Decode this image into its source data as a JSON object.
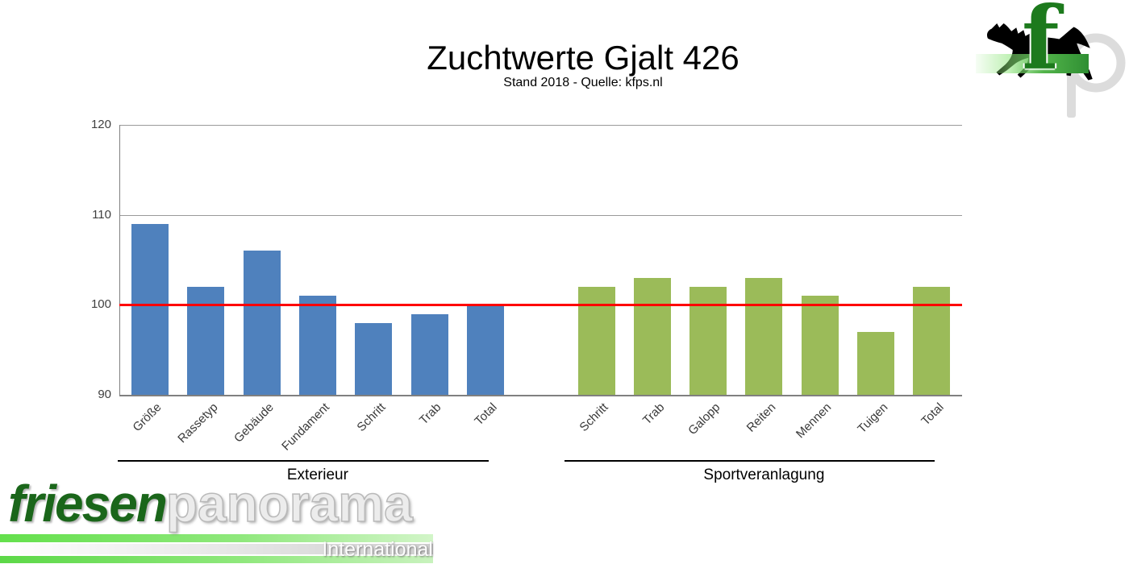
{
  "page": {
    "title": "Zuchtwerte Gjalt 426",
    "subtitle": "Stand 2018 - Quelle: kfps.nl"
  },
  "chart_data": {
    "type": "bar",
    "title": "Zuchtwerte Gjalt 426",
    "subtitle": "Stand 2018 - Quelle: kfps.nl",
    "ylim": [
      90,
      120
    ],
    "yticks": [
      120,
      110,
      100,
      90
    ],
    "grid": "horizontal",
    "legend": "none",
    "reference_line": {
      "value": 100,
      "color": "#FF0000"
    },
    "gridline_color": "#9A9A9A",
    "groups": [
      {
        "label": "Exterieur",
        "color": "#4F81BD",
        "categories": [
          "Größe",
          "Rassetyp",
          "Gebäude",
          "Fundament",
          "Schritt",
          "Trab",
          "Total"
        ],
        "values": [
          109,
          102,
          106,
          101,
          98,
          99,
          100
        ]
      },
      {
        "label": "Sportveranlagung",
        "color": "#9BBB59",
        "categories": [
          "Schritt",
          "Trab",
          "Galopp",
          "Reiten",
          "Mennen",
          "Tuigen",
          "Total"
        ],
        "values": [
          102,
          103,
          102,
          103,
          101,
          97,
          102
        ]
      }
    ]
  },
  "logo_top_right": {
    "letter_f": "f",
    "letter_p": "p",
    "horse_icon": "black-friesian-horse-silhouette",
    "band_color": "#3F9E3F",
    "f_color": "#1D7A1D"
  },
  "logo_bottom_left": {
    "word1": "friesen",
    "word2": "panorama",
    "word3": "International",
    "green": "#1A661A",
    "stripe_green": "#64E04C"
  }
}
